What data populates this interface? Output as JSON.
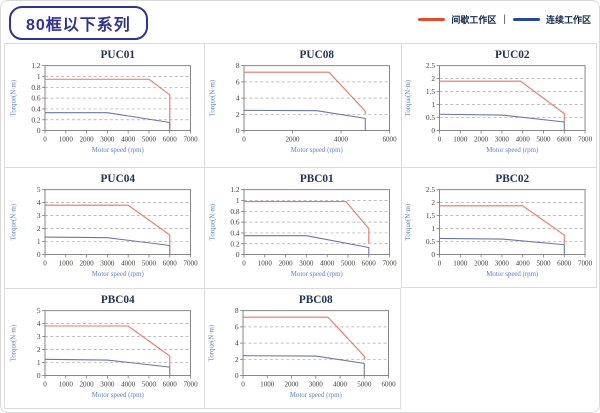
{
  "header": {
    "badge_label": "80框以下系列",
    "legend": {
      "items": [
        {
          "label": "间歇工作区",
          "color": "#e6492e"
        },
        {
          "label": "连续工作区",
          "color": "#234a96"
        }
      ],
      "separator": "|"
    }
  },
  "styles": {
    "curve_red": "#ec7460",
    "curve_blue": "#6a77a0",
    "title_color": "#203457",
    "tick_color": "#44403a",
    "axis_label_color": "#5d82ca",
    "grid_color": "#a8a8a8",
    "plot_border": "#787878"
  },
  "chart_data": [
    {
      "type": "line",
      "title": "PUC01",
      "xlabel": "Motor speed (rpm)",
      "ylabel": "Torque(N·m)",
      "xlim": [
        0,
        7000
      ],
      "ylim": [
        0,
        1.2
      ],
      "xticks": [
        0,
        1000,
        2000,
        3000,
        4000,
        5000,
        6000,
        7000
      ],
      "yticks": [
        0,
        0.2,
        0.4,
        0.6,
        0.8,
        1,
        1.2
      ],
      "grid": "dashed-horizontal",
      "legend_position": "none",
      "series": [
        {
          "name": "间歇工作区",
          "color": "#ec7460",
          "points": [
            [
              0,
              0.95
            ],
            [
              5000,
              0.95
            ],
            [
              6000,
              0.66
            ],
            [
              6000,
              0.05
            ]
          ]
        },
        {
          "name": "连续工作区",
          "color": "#6a77a0",
          "points": [
            [
              0,
              0.33
            ],
            [
              3000,
              0.33
            ],
            [
              6000,
              0.15
            ],
            [
              6000,
              0
            ]
          ]
        }
      ]
    },
    {
      "type": "line",
      "title": "PUC08",
      "xlabel": "Motor speed (rpm)",
      "ylabel": "Torque(N·m)",
      "xlim": [
        0,
        6000
      ],
      "ylim": [
        0,
        8
      ],
      "xticks": [
        0,
        2000,
        4000,
        6000
      ],
      "yticks": [
        0,
        2,
        4,
        6,
        8
      ],
      "grid": "dashed-horizontal",
      "legend_position": "none",
      "series": [
        {
          "name": "间歇工作区",
          "color": "#ec7460",
          "points": [
            [
              0,
              7.2
            ],
            [
              3500,
              7.2
            ],
            [
              5000,
              2.4
            ],
            [
              5000,
              2.0
            ]
          ]
        },
        {
          "name": "连续工作区",
          "color": "#6a77a0",
          "points": [
            [
              0,
              2.5
            ],
            [
              3000,
              2.45
            ],
            [
              5000,
              1.5
            ],
            [
              5000,
              0
            ]
          ]
        }
      ]
    },
    {
      "type": "line",
      "title": "PUC02",
      "xlabel": "Motor speed (rpm)",
      "ylabel": "Torque(N·m)",
      "xlim": [
        0,
        7000
      ],
      "ylim": [
        0,
        2.5
      ],
      "xticks": [
        0,
        1000,
        2000,
        3000,
        4000,
        5000,
        6000,
        7000
      ],
      "yticks": [
        0,
        0.5,
        1,
        1.5,
        2,
        2.5
      ],
      "grid": "dashed-horizontal",
      "legend_position": "none",
      "series": [
        {
          "name": "间歇工作区",
          "color": "#ec7460",
          "points": [
            [
              0,
              1.9
            ],
            [
              3900,
              1.9
            ],
            [
              6000,
              0.65
            ],
            [
              6000,
              0.35
            ]
          ]
        },
        {
          "name": "连续工作区",
          "color": "#6a77a0",
          "points": [
            [
              0,
              0.63
            ],
            [
              3000,
              0.6
            ],
            [
              6000,
              0.33
            ],
            [
              6000,
              0
            ]
          ]
        }
      ]
    },
    {
      "type": "line",
      "title": "PUC04",
      "xlabel": "Motor speed (rpm)",
      "ylabel": "Torque(N·m)",
      "xlim": [
        0,
        7000
      ],
      "ylim": [
        0,
        5
      ],
      "xticks": [
        0,
        1000,
        2000,
        3000,
        4000,
        5000,
        6000,
        7000
      ],
      "yticks": [
        0,
        1,
        2,
        3,
        4,
        5
      ],
      "grid": "dashed-horizontal",
      "legend_position": "none",
      "series": [
        {
          "name": "间歇工作区",
          "color": "#ec7460",
          "points": [
            [
              0,
              3.8
            ],
            [
              4000,
              3.8
            ],
            [
              6000,
              1.5
            ],
            [
              6000,
              0.7
            ]
          ]
        },
        {
          "name": "连续工作区",
          "color": "#6a77a0",
          "points": [
            [
              0,
              1.35
            ],
            [
              3000,
              1.3
            ],
            [
              6000,
              0.7
            ],
            [
              6000,
              0
            ]
          ]
        }
      ]
    },
    {
      "type": "line",
      "title": "PBC01",
      "xlabel": "Motor speed (rpm)",
      "ylabel": "Torque(N·m)",
      "xlim": [
        0,
        7000
      ],
      "ylim": [
        0,
        1.2
      ],
      "xticks": [
        0,
        1000,
        2000,
        3000,
        4000,
        5000,
        6000,
        7000
      ],
      "yticks": [
        0,
        0.2,
        0.4,
        0.6,
        0.8,
        1,
        1.2
      ],
      "grid": "dashed-horizontal",
      "legend_position": "none",
      "series": [
        {
          "name": "间歇工作区",
          "color": "#ec7460",
          "points": [
            [
              0,
              0.98
            ],
            [
              4900,
              0.98
            ],
            [
              6000,
              0.48
            ],
            [
              6000,
              0.2
            ]
          ]
        },
        {
          "name": "连续工作区",
          "color": "#6a77a0",
          "points": [
            [
              0,
              0.35
            ],
            [
              3000,
              0.35
            ],
            [
              6000,
              0.13
            ],
            [
              6000,
              0
            ]
          ]
        }
      ]
    },
    {
      "type": "line",
      "title": "PBC02",
      "xlabel": "Motor speed (rpm)",
      "ylabel": "Torque(N·m)",
      "xlim": [
        0,
        7000
      ],
      "ylim": [
        0,
        2.5
      ],
      "xticks": [
        0,
        1000,
        2000,
        3000,
        4000,
        5000,
        6000,
        7000
      ],
      "yticks": [
        0,
        0.5,
        1,
        1.5,
        2,
        2.5
      ],
      "grid": "dashed-horizontal",
      "legend_position": "none",
      "series": [
        {
          "name": "间歇工作区",
          "color": "#ec7460",
          "points": [
            [
              0,
              1.88
            ],
            [
              4000,
              1.88
            ],
            [
              6000,
              0.75
            ],
            [
              6000,
              0.4
            ]
          ]
        },
        {
          "name": "连续工作区",
          "color": "#6a77a0",
          "points": [
            [
              0,
              0.62
            ],
            [
              3000,
              0.6
            ],
            [
              6000,
              0.38
            ],
            [
              6000,
              0
            ]
          ]
        }
      ]
    },
    {
      "type": "line",
      "title": "PBC04",
      "xlabel": "Motor speed (rpm)",
      "ylabel": "Torque(N·m)",
      "xlim": [
        0,
        7000
      ],
      "ylim": [
        0,
        5
      ],
      "xticks": [
        0,
        1000,
        2000,
        3000,
        4000,
        5000,
        6000,
        7000
      ],
      "yticks": [
        0,
        1,
        2,
        3,
        4,
        5
      ],
      "grid": "dashed-horizontal",
      "legend_position": "none",
      "series": [
        {
          "name": "间歇工作区",
          "color": "#ec7460",
          "points": [
            [
              0,
              3.82
            ],
            [
              4000,
              3.82
            ],
            [
              6000,
              1.5
            ],
            [
              6000,
              0.65
            ]
          ]
        },
        {
          "name": "连续工作区",
          "color": "#6a77a0",
          "points": [
            [
              0,
              1.25
            ],
            [
              3000,
              1.2
            ],
            [
              6000,
              0.65
            ],
            [
              6000,
              0
            ]
          ]
        }
      ]
    },
    {
      "type": "line",
      "title": "PBC08",
      "xlabel": "Motor speed (rpm)",
      "ylabel": "Torque(N·m)",
      "xlim": [
        0,
        6000
      ],
      "ylim": [
        0,
        8
      ],
      "xticks": [
        0,
        1000,
        2000,
        3000,
        4000,
        5000,
        6000
      ],
      "yticks": [
        0,
        2,
        4,
        6,
        8
      ],
      "grid": "dashed-horizontal",
      "legend_position": "none",
      "series": [
        {
          "name": "间歇工作区",
          "color": "#ec7460",
          "points": [
            [
              0,
              7.2
            ],
            [
              3500,
              7.2
            ],
            [
              5000,
              2.4
            ],
            [
              5000,
              2.0
            ]
          ]
        },
        {
          "name": "连续工作区",
          "color": "#6a77a0",
          "points": [
            [
              0,
              2.45
            ],
            [
              3000,
              2.4
            ],
            [
              5000,
              1.5
            ],
            [
              5000,
              0
            ]
          ]
        }
      ]
    }
  ]
}
